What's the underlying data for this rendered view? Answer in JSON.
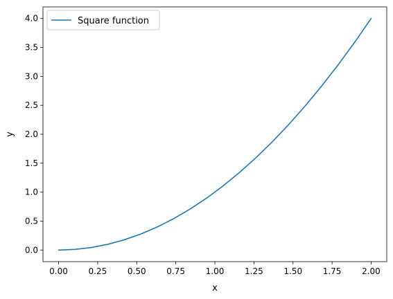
{
  "chart_data": {
    "type": "line",
    "title": "",
    "xlabel": "x",
    "ylabel": "y",
    "xlim": [
      -0.1,
      2.1
    ],
    "ylim": [
      -0.2,
      4.2
    ],
    "grid": false,
    "legend_position": "top-left",
    "x_ticks": [
      0.0,
      0.25,
      0.5,
      0.75,
      1.0,
      1.25,
      1.5,
      1.75,
      2.0
    ],
    "x_tick_labels": [
      "0.00",
      "0.25",
      "0.50",
      "0.75",
      "1.00",
      "1.25",
      "1.50",
      "1.75",
      "2.00"
    ],
    "y_ticks": [
      0.0,
      0.5,
      1.0,
      1.5,
      2.0,
      2.5,
      3.0,
      3.5,
      4.0
    ],
    "y_tick_labels": [
      "0.0",
      "0.5",
      "1.0",
      "1.5",
      "2.0",
      "2.5",
      "3.0",
      "3.5",
      "4.0"
    ],
    "series": [
      {
        "name": "Square function",
        "color": "#1f77b4",
        "x": [
          0.0,
          0.1053,
          0.2105,
          0.3158,
          0.4211,
          0.5263,
          0.6316,
          0.7368,
          0.8421,
          0.9474,
          1.0526,
          1.1579,
          1.2632,
          1.3684,
          1.4737,
          1.5789,
          1.6842,
          1.7895,
          1.8947,
          2.0
        ],
        "y": [
          0.0,
          0.0111,
          0.0443,
          0.0997,
          0.1773,
          0.277,
          0.3989,
          0.5429,
          0.7091,
          0.8975,
          1.108,
          1.3407,
          1.5956,
          1.8726,
          2.1717,
          2.4931,
          2.8366,
          3.2022,
          3.59,
          4.0
        ]
      }
    ]
  }
}
